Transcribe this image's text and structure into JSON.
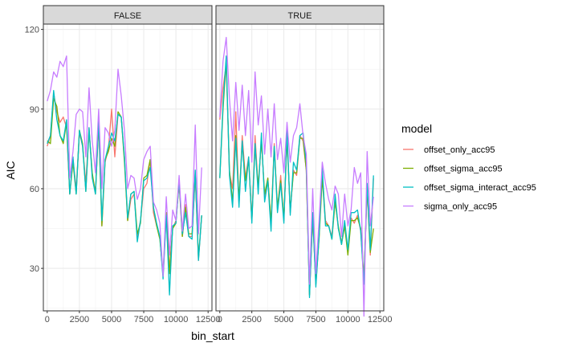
{
  "chart_data": {
    "type": "line",
    "xlabel": "bin_start",
    "ylabel": "AIC",
    "xlim": [
      -300,
      12800
    ],
    "ylim": [
      14,
      122
    ],
    "xticks": [
      0,
      2500,
      5000,
      7500,
      10000,
      12500
    ],
    "xtick_labels": [
      "0",
      "2500",
      "5000",
      "7500",
      "10000",
      "12500"
    ],
    "yticks": [
      30,
      60,
      90,
      120
    ],
    "ytick_labels": [
      "30",
      "60",
      "90",
      "120"
    ],
    "grid": true,
    "legend": {
      "title": "model",
      "position": "right"
    },
    "x": [
      0,
      250,
      500,
      750,
      1000,
      1250,
      1500,
      1750,
      2000,
      2250,
      2500,
      2750,
      3000,
      3250,
      3500,
      3750,
      4000,
      4250,
      4500,
      4750,
      5000,
      5250,
      5500,
      5750,
      6000,
      6250,
      6500,
      6750,
      7000,
      7250,
      7500,
      7750,
      8000,
      8250,
      8500,
      8750,
      9000,
      9250,
      9500,
      9750,
      10000,
      10250,
      10500,
      10750,
      11000,
      11250,
      11500,
      11750,
      12000
    ],
    "panels": [
      {
        "label": "FALSE",
        "series": [
          {
            "name": "offset_only_acc95",
            "color": "#F8766D",
            "values": [
              76,
              80,
              96,
              89,
              85,
              87,
              83,
              58,
              71,
              60,
              81,
              76,
              62,
              83,
              65,
              59,
              84,
              46,
              70,
              75,
              90,
              72,
              88,
              87,
              72,
              48,
              56,
              58,
              42,
              48,
              60,
              62,
              71,
              51,
              46,
              42,
              27,
              50,
              30,
              45,
              48,
              62,
              42,
              54,
              42,
              42,
              65,
              33,
              50
            ]
          },
          {
            "name": "offset_sigma_acc95",
            "color": "#7CAE00",
            "values": [
              78,
              77,
              94,
              91,
              80,
              77,
              85,
              58,
              70,
              58,
              82,
              77,
              59,
              82,
              66,
              58,
              85,
              46,
              71,
              74,
              79,
              76,
              89,
              87,
              70,
              48,
              58,
              59,
              43,
              47,
              64,
              65,
              71,
              53,
              46,
              41,
              28,
              51,
              28,
              45,
              47,
              63,
              42,
              53,
              43,
              43,
              66,
              34,
              50
            ]
          },
          {
            "name": "offset_sigma_interact_acc95",
            "color": "#00BFC4",
            "values": [
              77,
              80,
              97,
              86,
              80,
              78,
              86,
              58,
              72,
              58,
              82,
              76,
              59,
              83,
              64,
              58,
              86,
              48,
              71,
              76,
              81,
              78,
              88,
              87,
              72,
              49,
              58,
              59,
              40,
              48,
              63,
              64,
              68,
              53,
              47,
              42,
              26,
              50,
              20,
              46,
              47,
              63,
              43,
              51,
              42,
              41,
              67,
              33,
              50
            ]
          },
          {
            "name": "sigma_only_acc95",
            "color": "#C77CFF",
            "values": [
              93,
              97,
              104,
              102,
              108,
              106,
              110,
              64,
              74,
              88,
              90,
              89,
              72,
              98,
              78,
              66,
              90,
              60,
              83,
              81,
              76,
              82,
              105,
              95,
              82,
              60,
              65,
              64,
              56,
              60,
              71,
              74,
              76,
              55,
              52,
              47,
              27,
              57,
              35,
              52,
              48,
              65,
              44,
              58,
              45,
              46,
              84,
              43,
              68
            ]
          }
        ]
      },
      {
        "label": "TRUE",
        "series": [
          {
            "name": "offset_only_acc95",
            "color": "#F8766D",
            "values": [
              86,
              98,
              107,
              66,
              60,
              89,
              54,
              80,
              64,
              72,
              48,
              80,
              60,
              79,
              57,
              64,
              47,
              77,
              52,
              65,
              48,
              80,
              51,
              67,
              65,
              80,
              78,
              67,
              20,
              50,
              25,
              42,
              66,
              48,
              46,
              42,
              56,
              45,
              40,
              46,
              36,
              49,
              47,
              50,
              44,
              25,
              60,
              35,
              64
            ]
          },
          {
            "name": "offset_sigma_acc95",
            "color": "#7CAE00",
            "values": [
              64,
              90,
              108,
              67,
              55,
              80,
              56,
              77,
              63,
              71,
              48,
              76,
              61,
              78,
              58,
              64,
              47,
              76,
              53,
              63,
              49,
              79,
              52,
              66,
              66,
              79,
              79,
              67,
              20,
              49,
              24,
              41,
              64,
              47,
              46,
              41,
              55,
              46,
              39,
              46,
              35,
              48,
              48,
              49,
              45,
              26,
              61,
              36,
              45
            ]
          },
          {
            "name": "offset_sigma_interact_acc95",
            "color": "#00BFC4",
            "values": [
              64,
              92,
              110,
              65,
              53,
              79,
              53,
              78,
              59,
              72,
              47,
              77,
              58,
              81,
              55,
              63,
              44,
              76,
              51,
              62,
              47,
              82,
              50,
              70,
              67,
              80,
              81,
              70,
              19,
              51,
              23,
              42,
              68,
              46,
              46,
              41,
              58,
              45,
              39,
              48,
              37,
              51,
              51,
              52,
              44,
              24,
              62,
              37,
              65
            ]
          },
          {
            "name": "sigma_only_acc95",
            "color": "#C77CFF",
            "values": [
              87,
              108,
              117,
              94,
              78,
              100,
              82,
              99,
              80,
              97,
              70,
              104,
              84,
              95,
              73,
              90,
              72,
              92,
              71,
              79,
              66,
              85,
              70,
              80,
              83,
              92,
              80,
              73,
              24,
              60,
              28,
              48,
              70,
              62,
              56,
              52,
              61,
              58,
              42,
              58,
              46,
              52,
              68,
              62,
              66,
              12,
              74,
              46,
              57
            ]
          }
        ]
      }
    ]
  }
}
